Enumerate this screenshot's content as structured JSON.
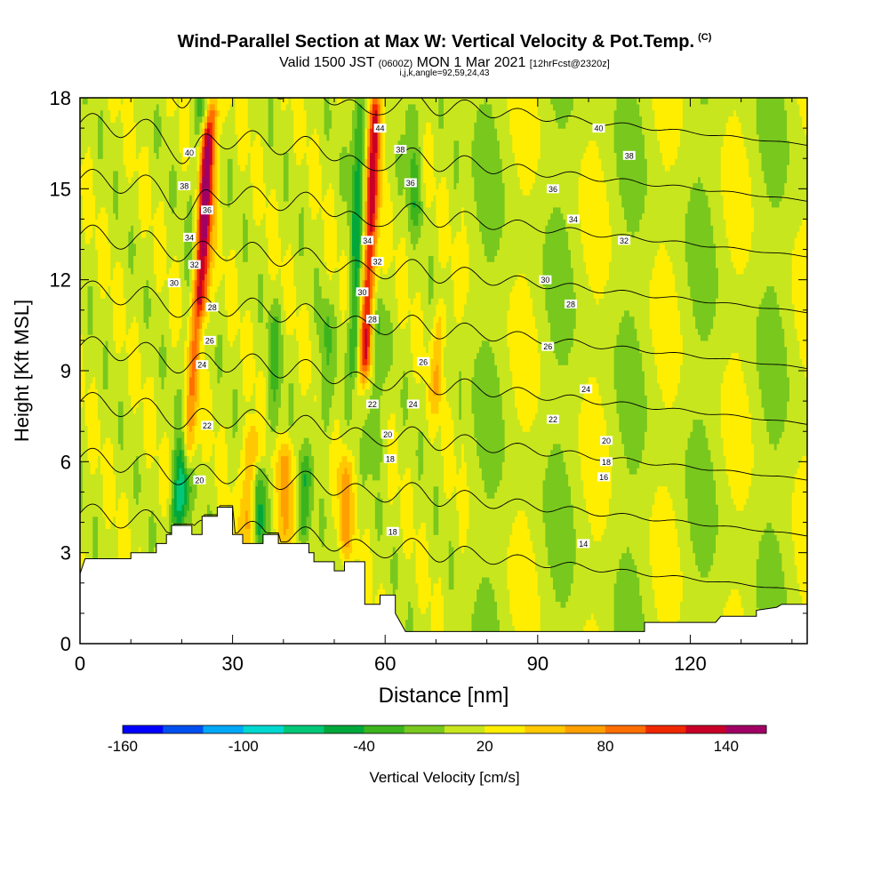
{
  "title": {
    "main": "Wind-Parallel Section at Max W: Vertical Velocity & Pot.Temp.",
    "copyright": "(C)",
    "valid_prefix": "Valid 1500 JST",
    "valid_utc": "(0600Z)",
    "valid_date": "MON 1 Mar 2021",
    "forecast": "[12hrFcst@2320z]",
    "grid_info": "i,j,k,angle=92,59,24,43"
  },
  "chart_data": {
    "type": "heatmap",
    "xlabel": "Distance [nm]",
    "ylabel": "Height [Kft MSL]",
    "xlim": [
      0,
      143
    ],
    "ylim": [
      0,
      18
    ],
    "x_ticks": [
      0,
      30,
      60,
      90,
      120
    ],
    "y_ticks": [
      0,
      3,
      6,
      9,
      12,
      15,
      18
    ],
    "colorbar": {
      "label": "Vertical Velocity [cm/s]",
      "tick_labels": [
        -160,
        -100,
        -40,
        20,
        80,
        140
      ],
      "levels": [
        -160,
        -140,
        -120,
        -100,
        -80,
        -60,
        -40,
        -20,
        0,
        20,
        40,
        60,
        80,
        100,
        120,
        140,
        160
      ],
      "colors": [
        "#0000ff",
        "#0050f0",
        "#00a8f8",
        "#00d8d0",
        "#00c878",
        "#00a83c",
        "#3cb41e",
        "#78c81e",
        "#c8e61e",
        "#ffee00",
        "#ffc800",
        "#ffa000",
        "#ff6e00",
        "#f02800",
        "#c80028",
        "#a00064"
      ]
    },
    "terrain_kft": [
      [
        0,
        2.3
      ],
      [
        1,
        2.8
      ],
      [
        10,
        2.8
      ],
      [
        10,
        3.0
      ],
      [
        15,
        3.0
      ],
      [
        15,
        3.3
      ],
      [
        17,
        3.3
      ],
      [
        17,
        3.6
      ],
      [
        18,
        3.6
      ],
      [
        18,
        3.9
      ],
      [
        22,
        3.9
      ],
      [
        22,
        3.6
      ],
      [
        24,
        3.6
      ],
      [
        24,
        4.2
      ],
      [
        27,
        4.2
      ],
      [
        27,
        4.5
      ],
      [
        30,
        4.5
      ],
      [
        30,
        3.6
      ],
      [
        32,
        3.6
      ],
      [
        32,
        3.3
      ],
      [
        36,
        3.3
      ],
      [
        36,
        3.6
      ],
      [
        39,
        3.6
      ],
      [
        39,
        3.3
      ],
      [
        45,
        3.3
      ],
      [
        45,
        3.0
      ],
      [
        46,
        3.0
      ],
      [
        46,
        2.7
      ],
      [
        50,
        2.7
      ],
      [
        50,
        2.4
      ],
      [
        52,
        2.4
      ],
      [
        52,
        2.7
      ],
      [
        56,
        2.7
      ],
      [
        56,
        1.3
      ],
      [
        59,
        1.3
      ],
      [
        59,
        1.6
      ],
      [
        62,
        1.6
      ],
      [
        62,
        1.0
      ],
      [
        63,
        0.7
      ],
      [
        64,
        0.4
      ],
      [
        70,
        0.4
      ],
      [
        111,
        0.4
      ],
      [
        111,
        0.7
      ],
      [
        115,
        0.7
      ],
      [
        125,
        0.7
      ],
      [
        126,
        0.9
      ],
      [
        133,
        0.9
      ],
      [
        133,
        1.1
      ],
      [
        137,
        1.2
      ],
      [
        138,
        1.3
      ],
      [
        143,
        1.3
      ]
    ],
    "updrafts": [
      {
        "x": 21,
        "zmin": 6,
        "zmax": 17,
        "peak_cm_s": 100,
        "slant": 0.35
      },
      {
        "x": 24,
        "zmin": 11,
        "zmax": 18,
        "peak_cm_s": 80,
        "slant": 0.3
      },
      {
        "x": 56,
        "zmin": 9,
        "zmax": 18,
        "peak_cm_s": 110,
        "slant": 0.25
      },
      {
        "x": 33,
        "zmin": 3.5,
        "zmax": 7,
        "peak_cm_s": 60,
        "slant": 0.2
      },
      {
        "x": 40,
        "zmin": 3,
        "zmax": 6.5,
        "peak_cm_s": 50,
        "slant": 0.2
      },
      {
        "x": 52,
        "zmin": 3,
        "zmax": 6,
        "peak_cm_s": 50,
        "slant": 0.1
      },
      {
        "x": 70,
        "zmin": 8,
        "zmax": 11,
        "peak_cm_s": 40,
        "slant": 0.4
      }
    ],
    "downdrafts": [
      {
        "x": 20,
        "zmin": 4,
        "zmax": 18,
        "peak_cm_s": -50,
        "slant": 0.3
      },
      {
        "x": 54,
        "zmin": 9,
        "zmax": 18,
        "peak_cm_s": -60,
        "slant": 0.1
      },
      {
        "x": 66,
        "zmin": 14,
        "zmax": 18,
        "peak_cm_s": -40,
        "slant": -0.2
      },
      {
        "x": 19,
        "zmin": 4,
        "zmax": 6.5,
        "peak_cm_s": -60,
        "slant": 0.4
      },
      {
        "x": 35,
        "zmin": 3.3,
        "zmax": 5.5,
        "peak_cm_s": -55,
        "slant": 0.1
      },
      {
        "x": 44,
        "zmin": 3.3,
        "zmax": 6,
        "peak_cm_s": -40,
        "slant": 0.1
      },
      {
        "x": 58,
        "zmin": 6,
        "zmax": 11,
        "peak_cm_s": -40,
        "slant": 0.1
      },
      {
        "x": 38,
        "zmin": 7,
        "zmax": 11,
        "peak_cm_s": -30,
        "slant": 0.1
      },
      {
        "x": 48,
        "zmin": 7,
        "zmax": 11,
        "peak_cm_s": -30,
        "slant": 0.1
      }
    ],
    "theta_contours_C": {
      "levels": [
        14,
        16,
        18,
        20,
        22,
        24,
        26,
        28,
        30,
        32,
        34,
        36,
        38,
        40,
        42,
        44
      ],
      "labels": [
        {
          "text": "44",
          "x": 59,
          "z": 17.0
        },
        {
          "text": "40",
          "x": 102,
          "z": 17.0
        },
        {
          "text": "40",
          "x": 21.5,
          "z": 16.2
        },
        {
          "text": "38",
          "x": 63,
          "z": 16.3
        },
        {
          "text": "38",
          "x": 108,
          "z": 16.1
        },
        {
          "text": "38",
          "x": 20.5,
          "z": 15.1
        },
        {
          "text": "36",
          "x": 65,
          "z": 15.2
        },
        {
          "text": "36",
          "x": 93,
          "z": 15.0
        },
        {
          "text": "36",
          "x": 25,
          "z": 14.3
        },
        {
          "text": "34",
          "x": 97,
          "z": 14.0
        },
        {
          "text": "34",
          "x": 21.5,
          "z": 13.4
        },
        {
          "text": "34",
          "x": 56.5,
          "z": 13.3
        },
        {
          "text": "32",
          "x": 107,
          "z": 13.3
        },
        {
          "text": "32",
          "x": 22.5,
          "z": 12.5
        },
        {
          "text": "32",
          "x": 58.5,
          "z": 12.6
        },
        {
          "text": "30",
          "x": 18.5,
          "z": 11.9
        },
        {
          "text": "30",
          "x": 55.5,
          "z": 11.6
        },
        {
          "text": "30",
          "x": 91.5,
          "z": 12.0
        },
        {
          "text": "28",
          "x": 26,
          "z": 11.1
        },
        {
          "text": "28",
          "x": 57.5,
          "z": 10.7
        },
        {
          "text": "28",
          "x": 96.5,
          "z": 11.2
        },
        {
          "text": "26",
          "x": 25.5,
          "z": 10.0
        },
        {
          "text": "26",
          "x": 67.5,
          "z": 9.3
        },
        {
          "text": "26",
          "x": 92,
          "z": 9.8
        },
        {
          "text": "24",
          "x": 24,
          "z": 9.2
        },
        {
          "text": "24",
          "x": 65.5,
          "z": 7.9
        },
        {
          "text": "24",
          "x": 99.5,
          "z": 8.4
        },
        {
          "text": "22",
          "x": 57.5,
          "z": 7.9
        },
        {
          "text": "22",
          "x": 25,
          "z": 7.2
        },
        {
          "text": "22",
          "x": 93,
          "z": 7.4
        },
        {
          "text": "20",
          "x": 60.5,
          "z": 6.9
        },
        {
          "text": "20",
          "x": 103.5,
          "z": 6.7
        },
        {
          "text": "20",
          "x": 23.5,
          "z": 5.4
        },
        {
          "text": "18",
          "x": 61,
          "z": 6.1
        },
        {
          "text": "18",
          "x": 103.5,
          "z": 6.0
        },
        {
          "text": "18",
          "x": 61.5,
          "z": 3.7
        },
        {
          "text": "16",
          "x": 103,
          "z": 5.5
        },
        {
          "text": "14",
          "x": 99,
          "z": 3.3
        }
      ]
    }
  }
}
